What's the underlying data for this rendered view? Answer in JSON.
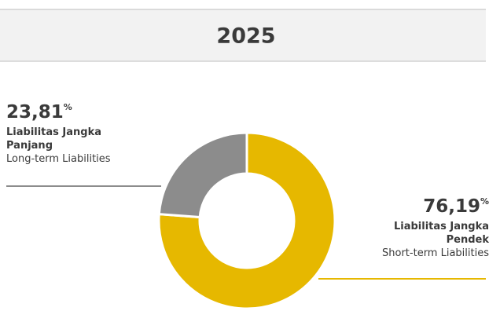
{
  "chart_data": {
    "type": "pie",
    "title": "2025",
    "categories": [
      "Liabilitas Jangka Panjang",
      "Liabilitas Jangka Pendek"
    ],
    "categories_en": [
      "Long-term Liabilities",
      "Short-term Liabilities"
    ],
    "values": [
      23.81,
      76.19
    ],
    "value_labels": [
      "23,81%",
      "76,19%"
    ],
    "colors": [
      "#8c8c8c",
      "#e6b800"
    ]
  }
}
